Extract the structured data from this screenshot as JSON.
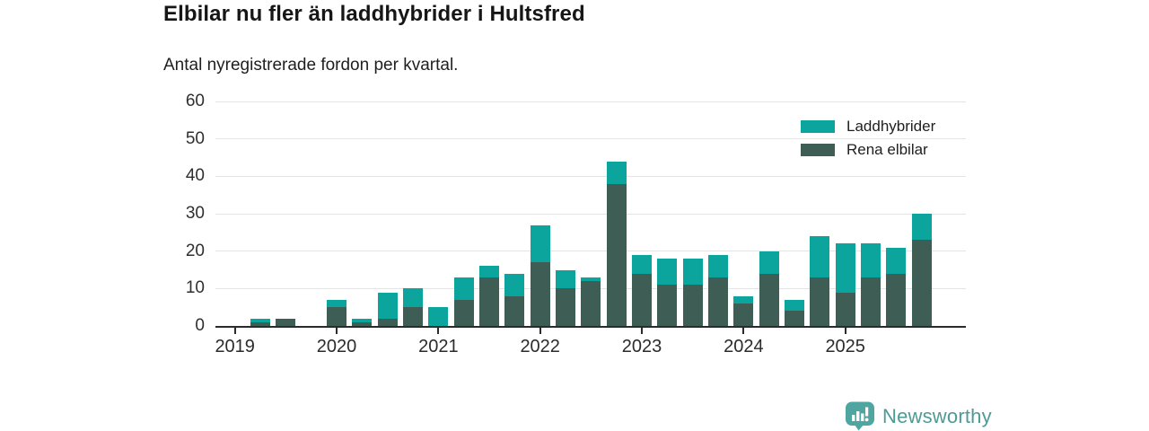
{
  "header": {
    "title": "Elbilar nu fler än laddhybrider i Hultsfred",
    "subtitle": "Antal nyregistrerade fordon per kvartal."
  },
  "legend": {
    "items": [
      {
        "label": "Laddhybrider",
        "color": "#0ba59d"
      },
      {
        "label": "Rena elbilar",
        "color": "#3e5e55"
      }
    ]
  },
  "footer": {
    "brand": "Newsworthy",
    "brand_color": "#4d9a97",
    "logo_icon": "bar-chart-speech-bubble-icon",
    "logo_color": "#4fa6a1"
  },
  "chart_data": {
    "type": "bar",
    "stacked": true,
    "title": "Elbilar nu fler än laddhybrider i Hultsfred",
    "subtitle": "Antal nyregistrerade fordon per kvartal.",
    "xlabel": "",
    "ylabel": "",
    "ylim": [
      0,
      60
    ],
    "y_ticks": [
      0,
      10,
      20,
      30,
      40,
      50,
      60
    ],
    "grid": "horizontal",
    "legend_position": "top-right",
    "year_tick_labels": [
      "2019",
      "2020",
      "2021",
      "2022",
      "2023",
      "2024",
      "2025"
    ],
    "categories": [
      "2019-Q1",
      "2019-Q2",
      "2019-Q3",
      "2019-Q4",
      "2020-Q1",
      "2020-Q2",
      "2020-Q3",
      "2020-Q4",
      "2021-Q1",
      "2021-Q2",
      "2021-Q3",
      "2021-Q4",
      "2022-Q1",
      "2022-Q2",
      "2022-Q3",
      "2022-Q4",
      "2023-Q1",
      "2023-Q2",
      "2023-Q3",
      "2023-Q4",
      "2024-Q1",
      "2024-Q2",
      "2024-Q3",
      "2024-Q4",
      "2025-Q1",
      "2025-Q2",
      "2025-Q3",
      "2025-Q4"
    ],
    "series": [
      {
        "name": "Rena elbilar",
        "color": "#3e5e55",
        "stack_order": "bottom",
        "values": [
          0,
          1,
          2,
          0,
          5,
          1,
          2,
          5,
          0,
          7,
          13,
          8,
          17,
          10,
          12,
          38,
          14,
          11,
          11,
          13,
          6,
          14,
          4,
          13,
          9,
          13,
          14,
          23
        ]
      },
      {
        "name": "Laddhybrider",
        "color": "#0ba59d",
        "stack_order": "top",
        "values": [
          0,
          1,
          0,
          0,
          2,
          1,
          7,
          5,
          5,
          6,
          3,
          6,
          10,
          5,
          1,
          6,
          5,
          7,
          7,
          6,
          2,
          6,
          3,
          11,
          13,
          9,
          7,
          7
        ]
      }
    ]
  }
}
